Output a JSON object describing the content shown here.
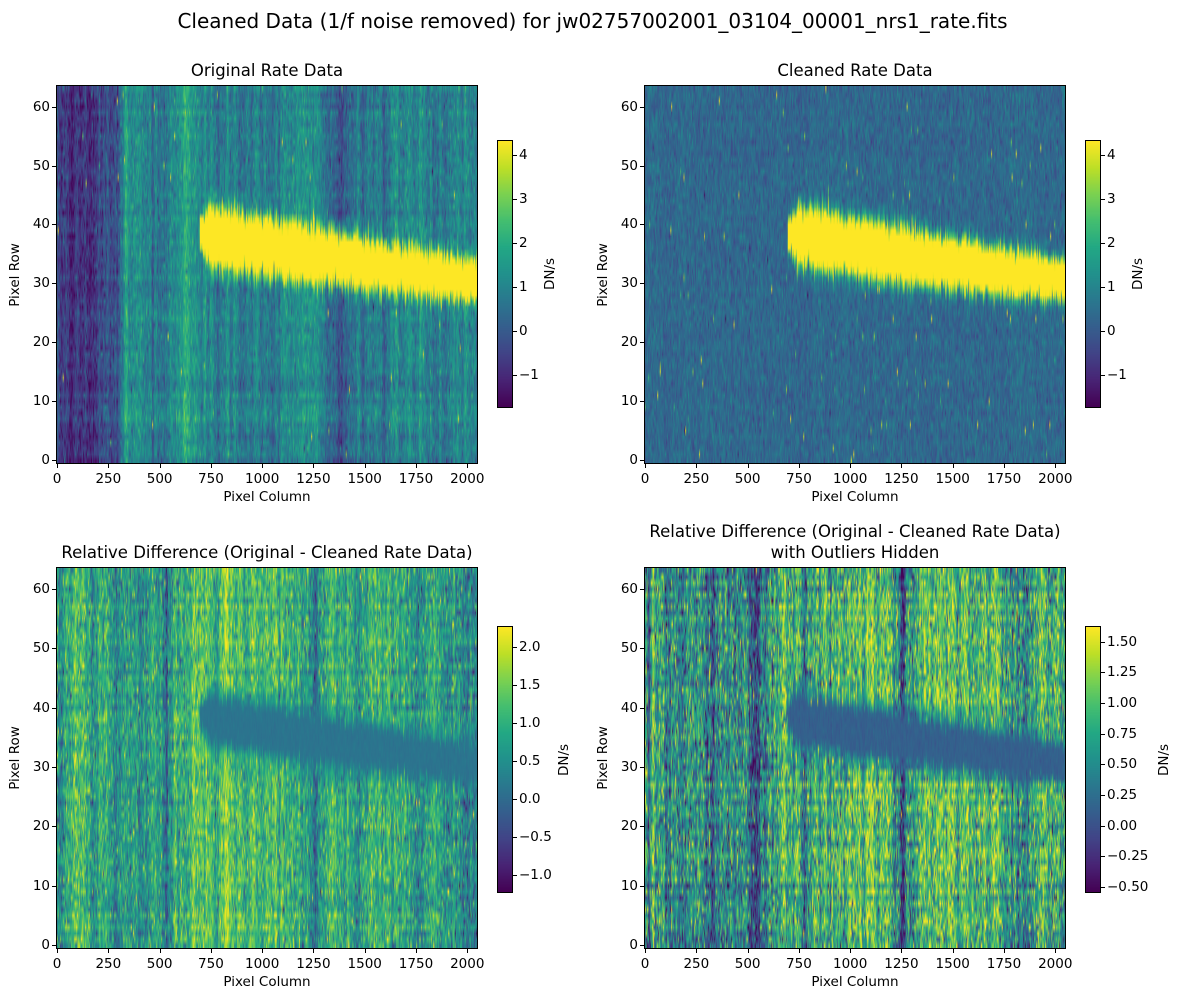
{
  "figure": {
    "suptitle": "Cleaned Data (1/f noise removed) for jw02757002001_03104_00001_nrs1_rate.fits",
    "background_color": "#ffffff",
    "colormap": "viridis"
  },
  "chart_data": [
    {
      "id": "original-rate",
      "type": "heatmap",
      "title": "Original Rate Data",
      "xlabel": "Pixel Column",
      "ylabel": "Pixel Row",
      "x_range": [
        0,
        2047
      ],
      "y_range": [
        0,
        63
      ],
      "x_ticks": [
        0,
        250,
        500,
        750,
        1000,
        1250,
        1500,
        1750,
        2000
      ],
      "y_ticks": [
        0,
        10,
        20,
        30,
        40,
        50,
        60
      ],
      "colormap": "viridis",
      "colorbar": {
        "label": "DN/s",
        "vmin": -1.72,
        "vmax": 4.32,
        "ticks": [
          {
            "v": 4,
            "label": "4"
          },
          {
            "v": 3,
            "label": "3"
          },
          {
            "v": 2,
            "label": "2"
          },
          {
            "v": 1,
            "label": "1"
          },
          {
            "v": 0,
            "label": "0"
          },
          {
            "v": -1,
            "label": "−1"
          }
        ]
      },
      "features": {
        "mode": "rate",
        "background_mean": 0.9,
        "noise_sigma": 0.45,
        "column_stripe_sigma": 0.34,
        "row_band_sigma": 0.13,
        "dark_left_region": {
          "x_end": 300,
          "level": -0.85
        },
        "bright_bands": [
          [
            560,
            650,
            0.32
          ],
          [
            1080,
            1300,
            0.42
          ],
          [
            1650,
            1800,
            0.22
          ]
        ],
        "dark_bands": [
          [
            380,
            470,
            -0.3
          ],
          [
            1390,
            1500,
            -0.25
          ]
        ],
        "hot_pixel_rate": 0.002,
        "trace": {
          "x_start": 695,
          "center_row_start": 38.6,
          "center_row_end": 30.5,
          "head_half_width": 4.4,
          "tail_half_width": 3.1,
          "head_end_col": 1150,
          "peak_dn": 10
        }
      }
    },
    {
      "id": "cleaned-rate",
      "type": "heatmap",
      "title": "Cleaned Rate Data",
      "xlabel": "Pixel Column",
      "ylabel": "Pixel Row",
      "x_range": [
        0,
        2047
      ],
      "y_range": [
        0,
        63
      ],
      "x_ticks": [
        0,
        250,
        500,
        750,
        1000,
        1250,
        1500,
        1750,
        2000
      ],
      "y_ticks": [
        0,
        10,
        20,
        30,
        40,
        50,
        60
      ],
      "colormap": "viridis",
      "colorbar": {
        "label": "DN/s",
        "vmin": -1.72,
        "vmax": 4.32,
        "ticks": [
          {
            "v": 4,
            "label": "4"
          },
          {
            "v": 3,
            "label": "3"
          },
          {
            "v": 2,
            "label": "2"
          },
          {
            "v": 1,
            "label": "1"
          },
          {
            "v": 0,
            "label": "0"
          },
          {
            "v": -1,
            "label": "−1"
          }
        ]
      },
      "features": {
        "mode": "rate",
        "background_mean": 0.3,
        "noise_sigma": 0.34,
        "column_stripe_sigma": 0.05,
        "row_band_sigma": 0.03,
        "hot_pixel_rate": 0.0035,
        "trace": {
          "x_start": 695,
          "center_row_start": 38.6,
          "center_row_end": 30.5,
          "head_half_width": 4.4,
          "tail_half_width": 3.1,
          "head_end_col": 1150,
          "peak_dn": 10
        }
      }
    },
    {
      "id": "relative-difference",
      "type": "heatmap",
      "title": "Relative Difference (Original - Cleaned Rate Data)",
      "xlabel": "Pixel Column",
      "ylabel": "Pixel Row",
      "x_range": [
        0,
        2047
      ],
      "y_range": [
        0,
        63
      ],
      "x_ticks": [
        0,
        250,
        500,
        750,
        1000,
        1250,
        1500,
        1750,
        2000
      ],
      "y_ticks": [
        0,
        10,
        20,
        30,
        40,
        50,
        60
      ],
      "colormap": "viridis",
      "colorbar": {
        "label": "DN/s",
        "vmin": -1.22,
        "vmax": 2.26,
        "ticks": [
          {
            "v": 2.0,
            "label": "2.0"
          },
          {
            "v": 1.5,
            "label": "1.5"
          },
          {
            "v": 1.0,
            "label": "1.0"
          },
          {
            "v": 0.5,
            "label": "0.5"
          },
          {
            "v": 0.0,
            "label": "0.0"
          },
          {
            "v": -0.5,
            "label": "−0.5"
          },
          {
            "v": -1.0,
            "label": "−1.0"
          }
        ]
      },
      "features": {
        "mode": "diff",
        "background_mean": 0.82,
        "noise_sigma": 0.46,
        "column_stripe_sigma": 0.24,
        "row_band_sigma": 0.08,
        "bright_bands": [
          [
            60,
            250,
            0.18
          ],
          [
            560,
            740,
            0.18
          ],
          [
            820,
            1200,
            0.14
          ],
          [
            1480,
            1660,
            0.1
          ]
        ],
        "dark_bands": [
          [
            300,
            540,
            -0.2
          ],
          [
            1750,
            1950,
            -0.15
          ]
        ],
        "dark_lines": [
          [
            15,
            0.5
          ],
          [
            775,
            0.8
          ],
          [
            1255,
            0.65
          ]
        ],
        "hot_pixel_rate": 0.004,
        "trace_level": 0.12,
        "trace": {
          "x_start": 695,
          "center_row_start": 38.6,
          "center_row_end": 30.5,
          "head_half_width": 4.8,
          "tail_half_width": 3.5,
          "head_end_col": 1150,
          "peak_dn": 1
        }
      }
    },
    {
      "id": "relative-difference-outliers-hidden",
      "type": "heatmap",
      "title": "Relative Difference (Original - Cleaned Rate Data)\nwith Outliers Hidden",
      "xlabel": "Pixel Column",
      "ylabel": "Pixel Row",
      "x_range": [
        0,
        2047
      ],
      "y_range": [
        0,
        63
      ],
      "x_ticks": [
        0,
        250,
        500,
        750,
        1000,
        1250,
        1500,
        1750,
        2000
      ],
      "y_ticks": [
        0,
        10,
        20,
        30,
        40,
        50,
        60
      ],
      "colormap": "viridis",
      "colorbar": {
        "label": "DN/s",
        "vmin": -0.54,
        "vmax": 1.62,
        "ticks": [
          {
            "v": 1.5,
            "label": "1.50"
          },
          {
            "v": 1.25,
            "label": "1.25"
          },
          {
            "v": 1.0,
            "label": "1.00"
          },
          {
            "v": 0.75,
            "label": "0.75"
          },
          {
            "v": 0.5,
            "label": "0.50"
          },
          {
            "v": 0.25,
            "label": "0.25"
          },
          {
            "v": 0.0,
            "label": "0.00"
          },
          {
            "v": -0.25,
            "label": "−0.25"
          },
          {
            "v": -0.5,
            "label": "−0.50"
          }
        ]
      },
      "features": {
        "mode": "diff",
        "clamp": true,
        "background_mean": 0.78,
        "noise_sigma": 0.42,
        "column_stripe_sigma": 0.24,
        "row_band_sigma": 0.08,
        "bright_bands": [
          [
            60,
            250,
            0.18
          ],
          [
            560,
            740,
            0.18
          ],
          [
            820,
            1200,
            0.14
          ],
          [
            1480,
            1660,
            0.1
          ]
        ],
        "dark_bands": [
          [
            300,
            540,
            -0.2
          ],
          [
            1750,
            1950,
            -0.15
          ]
        ],
        "dark_lines": [
          [
            15,
            0.5
          ],
          [
            775,
            0.8
          ],
          [
            1255,
            0.65
          ]
        ],
        "hot_pixel_rate": 0.004,
        "trace_level": 0.12,
        "trace": {
          "x_start": 695,
          "center_row_start": 38.6,
          "center_row_end": 30.5,
          "head_half_width": 4.8,
          "tail_half_width": 3.5,
          "head_end_col": 1150,
          "peak_dn": 1
        }
      }
    }
  ]
}
